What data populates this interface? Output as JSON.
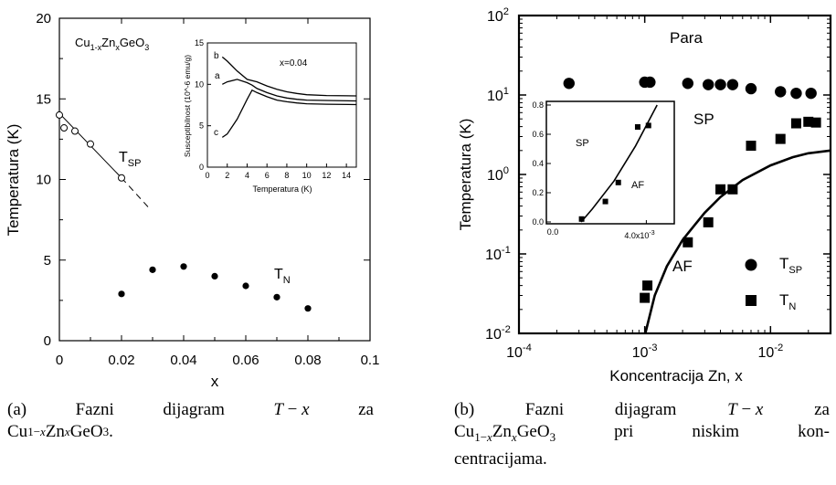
{
  "panel_a": {
    "compound": "Cu1-xZnxGeO3",
    "tsp_label": "T_SP",
    "tn_label": "T_N",
    "inset": {
      "ylabel": "Susceptibilnost (10^-6 emu/g)",
      "xlabel": "Temperatura (K)",
      "annotation": "x=0.04",
      "curve_labels": [
        "a",
        "b",
        "c"
      ]
    }
  },
  "panel_b": {
    "region_labels": [
      "Para",
      "SP",
      "AF"
    ],
    "legend": [
      "T_SP",
      "T_N"
    ],
    "inset_region_labels": [
      "SP",
      "AF"
    ]
  },
  "captions": {
    "a": [
      "(a)  Fazni  dijagram  T − x  za",
      "Cu1−xZnxGeO3."
    ],
    "b": [
      "(b)  Fazni  dijagram  T − x  za",
      "Cu1−xZnxGeO3  pri  niskim  kon-",
      "centracijama."
    ]
  },
  "chart_data": [
    {
      "type": "scatter",
      "xlabel": "x",
      "ylabel": "Temperatura (K)",
      "xlim": [
        0,
        0.1
      ],
      "ylim": [
        0,
        20
      ],
      "xticks": [
        "0",
        "0.02",
        "0.04",
        "0.06",
        "0.08",
        "0.1"
      ],
      "yticks": [
        "0",
        "5",
        "10",
        "15",
        "20"
      ],
      "series": [
        {
          "name": "T_SP",
          "marker": "open-circle",
          "x": [
            0,
            0.0015,
            0.005,
            0.01,
            0.02
          ],
          "y": [
            14.0,
            13.2,
            13.0,
            12.2,
            10.1
          ]
        },
        {
          "name": "T_N",
          "marker": "filled-circle",
          "x": [
            0.02,
            0.03,
            0.04,
            0.05,
            0.06,
            0.07,
            0.08
          ],
          "y": [
            2.9,
            4.4,
            4.6,
            4.0,
            3.4,
            2.7,
            2.0
          ]
        }
      ],
      "fit_line": {
        "x": [
          0,
          0.02
        ],
        "y": [
          14.1,
          10.1
        ]
      },
      "fit_dashed": {
        "x": [
          0.02,
          0.029
        ],
        "y": [
          10.1,
          8.2
        ]
      }
    },
    {
      "type": "line",
      "xlabel": "Temperatura (K)",
      "ylabel": "Susceptibilnost (10^-6 emu/g)",
      "xlim": [
        0,
        15
      ],
      "ylim": [
        0,
        15
      ],
      "xticks": [
        "0",
        "2",
        "4",
        "6",
        "8",
        "10",
        "12",
        "14"
      ],
      "yticks": [
        "0",
        "5",
        "10",
        "15"
      ],
      "annotation": "x=0.04",
      "series": [
        {
          "name": "b",
          "x": [
            1.5,
            2,
            3,
            4,
            5,
            6,
            7,
            8,
            9,
            10,
            12,
            15
          ],
          "y": [
            13.3,
            12.8,
            11.6,
            10.6,
            10.3,
            9.8,
            9.4,
            9.1,
            8.9,
            8.75,
            8.65,
            8.6
          ]
        },
        {
          "name": "a",
          "x": [
            1.5,
            2,
            3,
            4,
            4.5,
            5,
            6,
            7,
            8,
            9,
            10,
            12,
            15
          ],
          "y": [
            10.0,
            10.3,
            10.6,
            10.2,
            9.9,
            9.5,
            9.0,
            8.6,
            8.35,
            8.2,
            8.1,
            8.05,
            8.0
          ]
        },
        {
          "name": "c",
          "x": [
            1.5,
            2,
            3,
            4,
            4.5,
            5,
            6,
            7,
            8,
            9,
            10,
            12,
            15
          ],
          "y": [
            3.6,
            4.0,
            5.8,
            8.2,
            9.3,
            9.0,
            8.5,
            8.1,
            7.9,
            7.75,
            7.65,
            7.6,
            7.55
          ]
        }
      ]
    },
    {
      "type": "scatter",
      "xlabel": "Koncentracija Zn, x",
      "ylabel": "Temperatura (K)",
      "xscale": "log",
      "yscale": "log",
      "xlim": [
        0.0001,
        0.03
      ],
      "ylim": [
        0.01,
        100
      ],
      "xticks": [
        "10^-4",
        "10^-3",
        "10^-2"
      ],
      "yticks": [
        "10^-2",
        "10^-1",
        "10^0",
        "10^1",
        "10^2"
      ],
      "series": [
        {
          "name": "T_SP",
          "marker": "filled-circle",
          "x": [
            0.00025,
            0.001,
            0.0011,
            0.0022,
            0.0032,
            0.004,
            0.005,
            0.007,
            0.012,
            0.016,
            0.021
          ],
          "y": [
            14,
            14.5,
            14.5,
            14,
            13.5,
            13.5,
            13.5,
            12,
            11,
            10.5,
            10.5
          ]
        },
        {
          "name": "T_N",
          "marker": "filled-square",
          "x": [
            0.001,
            0.00105,
            0.0022,
            0.0032,
            0.004,
            0.005,
            0.007,
            0.012,
            0.016,
            0.02,
            0.023
          ],
          "y": [
            0.028,
            0.04,
            0.14,
            0.25,
            0.65,
            0.65,
            2.3,
            2.8,
            4.4,
            4.6,
            4.5
          ]
        }
      ],
      "fit_curve": {
        "x": [
          0.00101,
          0.0012,
          0.0015,
          0.002,
          0.003,
          0.004,
          0.006,
          0.01,
          0.015,
          0.02,
          0.03
        ],
        "y": [
          0.01,
          0.03,
          0.07,
          0.15,
          0.33,
          0.52,
          0.85,
          1.3,
          1.65,
          1.85,
          2.0
        ]
      }
    },
    {
      "type": "scatter",
      "xlim": [
        0,
        0.005
      ],
      "ylim": [
        0,
        0.8
      ],
      "xticks": [
        "0.0",
        "4.0x10^-3"
      ],
      "yticks": [
        "0.0",
        "0.2",
        "0.4",
        "0.6",
        "0.8"
      ],
      "series": [
        {
          "name": "T_N",
          "marker": "filled-square",
          "x": [
            0.001,
            0.0021,
            0.0027,
            0.0036,
            0.0041
          ],
          "y": [
            0.02,
            0.14,
            0.27,
            0.65,
            0.66
          ]
        }
      ],
      "fit_line": {
        "x": [
          0.00098,
          0.0015,
          0.0025,
          0.0035,
          0.0045
        ],
        "y": [
          0.0,
          0.09,
          0.28,
          0.52,
          0.8
        ]
      }
    }
  ]
}
